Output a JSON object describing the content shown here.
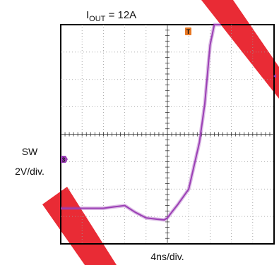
{
  "title": {
    "prefix": "I",
    "subscript": "OUT",
    "suffix": " = 12A"
  },
  "labels": {
    "channel": "SW",
    "vertical_scale": "2V/div.",
    "horizontal_scale": "4ns/div.",
    "channel_marker": "3",
    "trigger_marker": "T"
  },
  "colors": {
    "trace": "#9b3fb5",
    "trigger_marker": "#e87722",
    "channel_marker": "#9b3fb5",
    "watermark": "#e8202a"
  },
  "chart_data": {
    "type": "line",
    "title": "I_OUT = 12A",
    "xlabel": "4ns/div.",
    "ylabel": "SW 2V/div.",
    "grid": true,
    "x_divisions": 10,
    "y_divisions": 8,
    "x_unit": "ns",
    "y_unit": "V",
    "x_per_div": 4,
    "y_per_div": 2,
    "xlim": [
      -20,
      20
    ],
    "ylim": [
      -10,
      6
    ],
    "series": [
      {
        "x": [
          -20,
          -12,
          -10,
          -8,
          -6,
          -4,
          -2,
          -0.6,
          0,
          0.6,
          2,
          4,
          6,
          7,
          8,
          8.8,
          10
        ],
        "y": [
          -7.4,
          -7.4,
          -7.3,
          -7.2,
          -7.7,
          -8.1,
          -8.2,
          -8.25,
          -8.1,
          -7.8,
          -7.1,
          -6.0,
          -2.6,
          0.2,
          4.5,
          6.0,
          6.0
        ]
      }
    ]
  }
}
